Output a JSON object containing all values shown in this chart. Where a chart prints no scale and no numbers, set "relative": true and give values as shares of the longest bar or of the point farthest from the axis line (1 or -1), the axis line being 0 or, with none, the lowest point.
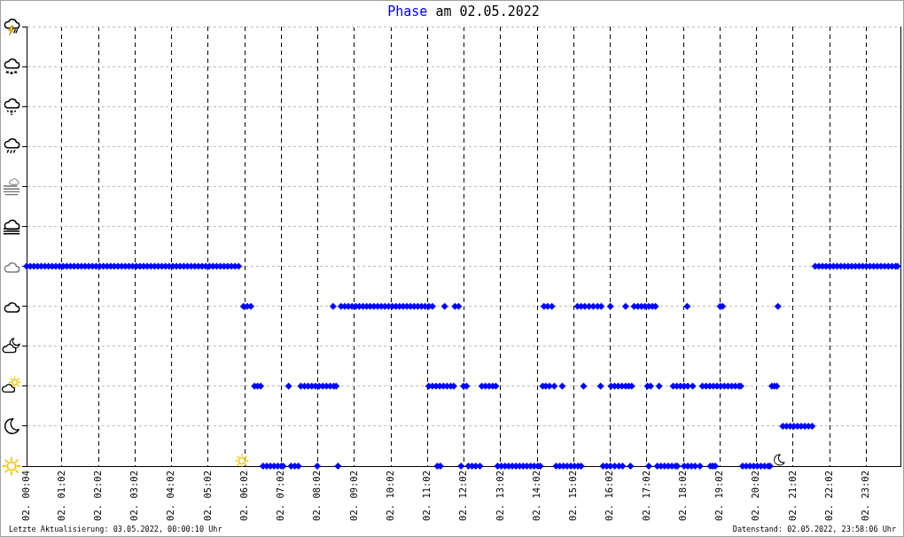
{
  "chart_data": {
    "type": "scatter",
    "title": "Phase am 02.05.2022",
    "annotations": [
      "Letzte Aktualisierung: 03.05.2022, 00:00:10 Uhr",
      "Datenstand: 02.05.2022, 23:58:06 Uhr"
    ],
    "relative": true,
    "grid": true,
    "marker": "diamond",
    "tick_labels": "x",
    "color": "#0000ff",
    "xlim": [
      "2022-05-02T00:04",
      "2022-05-02T23:58"
    ],
    "xticks": [
      {
        "value": "2022-05-02T00:04",
        "label": "02. 00:04"
      },
      {
        "value": "2022-05-02T01:02",
        "label": "02. 01:02"
      },
      {
        "value": "2022-05-02T02:02",
        "label": "02. 02:02"
      },
      {
        "value": "2022-05-02T03:02",
        "label": "02. 03:02"
      },
      {
        "value": "2022-05-02T04:02",
        "label": "02. 04:02"
      },
      {
        "value": "2022-05-02T05:02",
        "label": "02. 05:02"
      },
      {
        "value": "2022-05-02T06:02",
        "label": "02. 06:02"
      },
      {
        "value": "2022-05-02T07:02",
        "label": "02. 07:02"
      },
      {
        "value": "2022-05-02T08:02",
        "label": "02. 08:02"
      },
      {
        "value": "2022-05-02T09:02",
        "label": "02. 09:02"
      },
      {
        "value": "2022-05-02T10:02",
        "label": "02. 10:02"
      },
      {
        "value": "2022-05-02T11:02",
        "label": "02. 11:02"
      },
      {
        "value": "2022-05-02T12:02",
        "label": "02. 12:02"
      },
      {
        "value": "2022-05-02T13:02",
        "label": "02. 13:02"
      },
      {
        "value": "2022-05-02T14:02",
        "label": "02. 14:02"
      },
      {
        "value": "2022-05-02T15:02",
        "label": "02. 15:02"
      },
      {
        "value": "2022-05-02T16:02",
        "label": "02. 16:02"
      },
      {
        "value": "2022-05-02T17:02",
        "label": "02. 17:02"
      },
      {
        "value": "2022-05-02T18:02",
        "label": "02. 18:02"
      },
      {
        "value": "2022-05-02T19:02",
        "label": "02. 19:02"
      },
      {
        "value": "2022-05-02T20:02",
        "label": "02. 20:02"
      },
      {
        "value": "2022-05-02T21:02",
        "label": "02. 21:02"
      },
      {
        "value": "2022-05-02T22:02",
        "label": "02. 22:02"
      },
      {
        "value": "2022-05-02T23:02",
        "label": "02. 23:02"
      }
    ],
    "x": [
      "2022-05-02T00:04",
      "2022-05-02T00:10",
      "2022-05-02T00:16",
      "2022-05-02T00:22",
      "2022-05-02T00:28",
      "2022-05-02T00:34",
      "2022-05-02T00:40",
      "2022-05-02T00:46",
      "2022-05-02T00:52",
      "2022-05-02T00:58",
      "2022-05-02T01:04",
      "2022-05-02T01:10",
      "2022-05-02T01:16",
      "2022-05-02T01:22",
      "2022-05-02T01:28",
      "2022-05-02T01:34",
      "2022-05-02T01:40",
      "2022-05-02T01:46",
      "2022-05-02T01:52",
      "2022-05-02T01:58",
      "2022-05-02T02:04",
      "2022-05-02T02:10",
      "2022-05-02T02:16",
      "2022-05-02T02:22",
      "2022-05-02T02:28",
      "2022-05-02T02:34",
      "2022-05-02T02:40",
      "2022-05-02T02:46",
      "2022-05-02T02:52",
      "2022-05-02T02:58",
      "2022-05-02T03:04",
      "2022-05-02T03:10",
      "2022-05-02T03:16",
      "2022-05-02T03:22",
      "2022-05-02T03:28",
      "2022-05-02T03:34",
      "2022-05-02T03:40",
      "2022-05-02T03:46",
      "2022-05-02T03:52",
      "2022-05-02T03:58",
      "2022-05-02T04:04",
      "2022-05-02T04:10",
      "2022-05-02T04:16",
      "2022-05-02T04:22",
      "2022-05-02T04:28",
      "2022-05-02T04:34",
      "2022-05-02T04:40",
      "2022-05-02T04:46",
      "2022-05-02T04:52",
      "2022-05-02T04:58",
      "2022-05-02T05:04",
      "2022-05-02T05:10",
      "2022-05-02T05:16",
      "2022-05-02T05:22",
      "2022-05-02T05:28",
      "2022-05-02T05:34",
      "2022-05-02T05:40",
      "2022-05-02T05:46",
      "2022-05-02T05:52",
      "2022-05-02T06:00",
      "2022-05-02T06:06",
      "2022-05-02T06:12",
      "2022-05-02T06:18",
      "2022-05-02T06:23",
      "2022-05-02T06:28",
      "2022-05-02T06:32",
      "2022-05-02T06:38",
      "2022-05-02T06:44",
      "2022-05-02T06:50",
      "2022-05-02T06:56",
      "2022-05-02T07:02",
      "2022-05-02T07:05",
      "2022-05-02T07:14",
      "2022-05-02T07:18",
      "2022-05-02T07:24",
      "2022-05-02T07:30",
      "2022-05-02T07:34",
      "2022-05-02T07:40",
      "2022-05-02T07:46",
      "2022-05-02T07:52",
      "2022-05-02T07:58",
      "2022-05-02T08:01",
      "2022-05-02T08:04",
      "2022-05-02T08:10",
      "2022-05-02T08:16",
      "2022-05-02T08:22",
      "2022-05-02T08:27",
      "2022-05-02T08:28",
      "2022-05-02T08:32",
      "2022-05-02T08:35",
      "2022-05-02T08:40",
      "2022-05-02T08:46",
      "2022-05-02T08:52",
      "2022-05-02T08:58",
      "2022-05-02T09:04",
      "2022-05-02T09:10",
      "2022-05-02T09:16",
      "2022-05-02T09:22",
      "2022-05-02T09:28",
      "2022-05-02T09:34",
      "2022-05-02T09:40",
      "2022-05-02T09:46",
      "2022-05-02T09:52",
      "2022-05-02T09:58",
      "2022-05-02T10:04",
      "2022-05-02T10:10",
      "2022-05-02T10:16",
      "2022-05-02T10:22",
      "2022-05-02T10:28",
      "2022-05-02T10:34",
      "2022-05-02T10:40",
      "2022-05-02T10:46",
      "2022-05-02T10:52",
      "2022-05-02T10:58",
      "2022-05-02T11:04",
      "2022-05-02T11:04",
      "2022-05-02T11:10",
      "2022-05-02T11:10",
      "2022-05-02T11:16",
      "2022-05-02T11:18",
      "2022-05-02T11:22",
      "2022-05-02T11:23",
      "2022-05-02T11:28",
      "2022-05-02T11:30",
      "2022-05-02T11:34",
      "2022-05-02T11:40",
      "2022-05-02T11:45",
      "2022-05-02T11:47",
      "2022-05-02T11:53",
      "2022-05-02T11:57",
      "2022-05-02T12:01",
      "2022-05-02T12:06",
      "2022-05-02T12:09",
      "2022-05-02T12:15",
      "2022-05-02T12:21",
      "2022-05-02T12:28",
      "2022-05-02T12:31",
      "2022-05-02T12:37",
      "2022-05-02T12:43",
      "2022-05-02T12:49",
      "2022-05-02T12:54",
      "2022-05-02T12:57",
      "2022-05-02T13:03",
      "2022-05-02T13:09",
      "2022-05-02T13:15",
      "2022-05-02T13:21",
      "2022-05-02T13:27",
      "2022-05-02T13:33",
      "2022-05-02T13:39",
      "2022-05-02T13:45",
      "2022-05-02T13:51",
      "2022-05-02T13:57",
      "2022-05-02T14:03",
      "2022-05-02T14:07",
      "2022-05-02T14:11",
      "2022-05-02T14:13",
      "2022-05-02T14:16",
      "2022-05-02T14:19",
      "2022-05-02T14:22",
      "2022-05-02T14:26",
      "2022-05-02T14:30",
      "2022-05-02T14:33",
      "2022-05-02T14:39",
      "2022-05-02T14:43",
      "2022-05-02T14:45",
      "2022-05-02T14:51",
      "2022-05-02T14:57",
      "2022-05-02T15:03",
      "2022-05-02T15:08",
      "2022-05-02T15:09",
      "2022-05-02T15:14",
      "2022-05-02T15:14",
      "2022-05-02T15:18",
      "2022-05-02T15:20",
      "2022-05-02T15:27",
      "2022-05-02T15:34",
      "2022-05-02T15:41",
      "2022-05-02T15:46",
      "2022-05-02T15:47",
      "2022-05-02T15:50",
      "2022-05-02T15:56",
      "2022-05-02T16:02",
      "2022-05-02T16:02",
      "2022-05-02T16:03",
      "2022-05-02T16:09",
      "2022-05-02T16:09",
      "2022-05-02T16:15",
      "2022-05-02T16:16",
      "2022-05-02T16:21",
      "2022-05-02T16:22",
      "2022-05-02T16:27",
      "2022-05-02T16:27",
      "2022-05-02T16:32",
      "2022-05-02T16:35",
      "2022-05-02T16:37",
      "2022-05-02T16:41",
      "2022-05-02T16:47",
      "2022-05-02T16:53",
      "2022-05-02T16:59",
      "2022-05-02T17:03",
      "2022-05-02T17:05",
      "2022-05-02T17:05",
      "2022-05-02T17:08",
      "2022-05-02T17:11",
      "2022-05-02T17:16",
      "2022-05-02T17:19",
      "2022-05-02T17:22",
      "2022-05-02T17:25",
      "2022-05-02T17:31",
      "2022-05-02T17:37",
      "2022-05-02T17:43",
      "2022-05-02T17:45",
      "2022-05-02T17:49",
      "2022-05-02T17:51",
      "2022-05-02T17:52",
      "2022-05-02T17:57",
      "2022-05-02T18:03",
      "2022-05-02T18:03",
      "2022-05-02T18:08",
      "2022-05-02T18:09",
      "2022-05-02T18:09",
      "2022-05-02T18:15",
      "2022-05-02T18:17",
      "2022-05-02T18:21",
      "2022-05-02T18:29",
      "2022-05-02T18:33",
      "2022-05-02T18:39",
      "2022-05-02T18:45",
      "2022-05-02T18:46",
      "2022-05-02T18:50",
      "2022-05-02T18:51",
      "2022-05-02T18:54",
      "2022-05-02T18:57",
      "2022-05-02T19:02",
      "2022-05-02T19:03",
      "2022-05-02T19:06",
      "2022-05-02T19:09",
      "2022-05-02T19:15",
      "2022-05-02T19:21",
      "2022-05-02T19:27",
      "2022-05-02T19:33",
      "2022-05-02T19:36",
      "2022-05-02T19:39",
      "2022-05-02T19:45",
      "2022-05-02T19:51",
      "2022-05-02T19:57",
      "2022-05-02T20:03",
      "2022-05-02T20:09",
      "2022-05-02T20:15",
      "2022-05-02T20:21",
      "2022-05-02T20:24",
      "2022-05-02T20:27",
      "2022-05-02T20:31",
      "2022-05-02T20:35",
      "2022-05-02T20:37",
      "2022-05-02T20:45",
      "2022-05-02T20:51",
      "2022-05-02T20:57",
      "2022-05-02T21:03",
      "2022-05-02T21:09",
      "2022-05-02T21:15",
      "2022-05-02T21:21",
      "2022-05-02T21:27",
      "2022-05-02T21:33",
      "2022-05-02T21:38",
      "2022-05-02T21:44",
      "2022-05-02T21:50",
      "2022-05-02T21:56",
      "2022-05-02T22:02",
      "2022-05-02T22:08",
      "2022-05-02T22:14",
      "2022-05-02T22:20",
      "2022-05-02T22:26",
      "2022-05-02T22:32",
      "2022-05-02T22:38",
      "2022-05-02T22:44",
      "2022-05-02T22:50",
      "2022-05-02T22:56",
      "2022-05-02T23:02",
      "2022-05-02T23:08",
      "2022-05-02T23:14",
      "2022-05-02T23:20",
      "2022-05-02T23:26",
      "2022-05-02T23:32",
      "2022-05-02T23:38",
      "2022-05-02T23:44",
      "2022-05-02T23:50",
      "2022-05-02T23:53"
    ],
    "values": [
      1,
      1,
      1,
      1,
      1,
      1,
      1,
      1,
      1,
      1,
      1,
      1,
      1,
      1,
      1,
      1,
      1,
      1,
      1,
      1,
      1,
      1,
      1,
      1,
      1,
      1,
      1,
      1,
      1,
      1,
      1,
      1,
      1,
      1,
      1,
      1,
      1,
      1,
      1,
      1,
      1,
      1,
      1,
      1,
      1,
      1,
      1,
      1,
      1,
      1,
      1,
      1,
      1,
      1,
      1,
      1,
      1,
      1,
      1,
      0.8,
      0.8,
      0.8,
      0.4,
      0.4,
      0.4,
      0,
      0,
      0,
      0,
      0,
      0,
      0,
      0.4,
      0,
      0,
      0,
      0.4,
      0.4,
      0.4,
      0.4,
      0.4,
      0,
      0.4,
      0.4,
      0.4,
      0.4,
      0.8,
      0.4,
      0.4,
      0,
      0.8,
      0.8,
      0.8,
      0.8,
      0.8,
      0.8,
      0.8,
      0.8,
      0.8,
      0.8,
      0.8,
      0.8,
      0.8,
      0.8,
      0.8,
      0.8,
      0.8,
      0.8,
      0.8,
      0.8,
      0.8,
      0.8,
      0.8,
      0.8,
      0.8,
      0.4,
      0.8,
      0.4,
      0.4,
      0,
      0.4,
      0,
      0.4,
      0.8,
      0.4,
      0.4,
      0.4,
      0.8,
      0.8,
      0,
      0.4,
      0.4,
      0,
      0,
      0,
      0,
      0.4,
      0.4,
      0.4,
      0.4,
      0.4,
      0,
      0,
      0,
      0,
      0,
      0,
      0,
      0,
      0,
      0,
      0,
      0,
      0,
      0.4,
      0.8,
      0.4,
      0.8,
      0.4,
      0.8,
      0.4,
      0,
      0,
      0.4,
      0,
      0,
      0,
      0,
      0.8,
      0,
      0.8,
      0,
      0.4,
      0.8,
      0.8,
      0.8,
      0.8,
      0.4,
      0.8,
      0,
      0,
      0.8,
      0,
      0.4,
      0,
      0.4,
      0.4,
      0,
      0.4,
      0,
      0.8,
      0.4,
      0.4,
      0,
      0.4,
      0.8,
      0.8,
      0.8,
      0.8,
      0.4,
      0.8,
      0,
      0.4,
      0.8,
      0.8,
      0,
      0.4,
      0,
      0,
      0,
      0,
      0.4,
      0,
      0.4,
      0,
      0.4,
      0.4,
      0,
      0.8,
      0.4,
      0,
      0,
      0.4,
      0,
      0,
      0.4,
      0.4,
      0.4,
      0,
      0,
      0.4,
      0,
      0.4,
      0.8,
      0.4,
      0.8,
      0.4,
      0.4,
      0.4,
      0.4,
      0.4,
      0.4,
      0,
      0,
      0,
      0,
      0,
      0,
      0,
      0,
      0,
      0.4,
      0.4,
      0.4,
      0.8,
      0.2,
      0.2,
      0.2,
      0.2,
      0.2,
      0.2,
      0.2,
      0.2,
      0.2,
      1,
      1,
      1,
      1,
      1,
      1,
      1,
      1,
      1,
      1,
      1,
      1,
      1,
      1,
      1,
      1,
      1,
      1,
      1,
      1,
      1,
      1,
      1,
      1
    ]
  }
}
